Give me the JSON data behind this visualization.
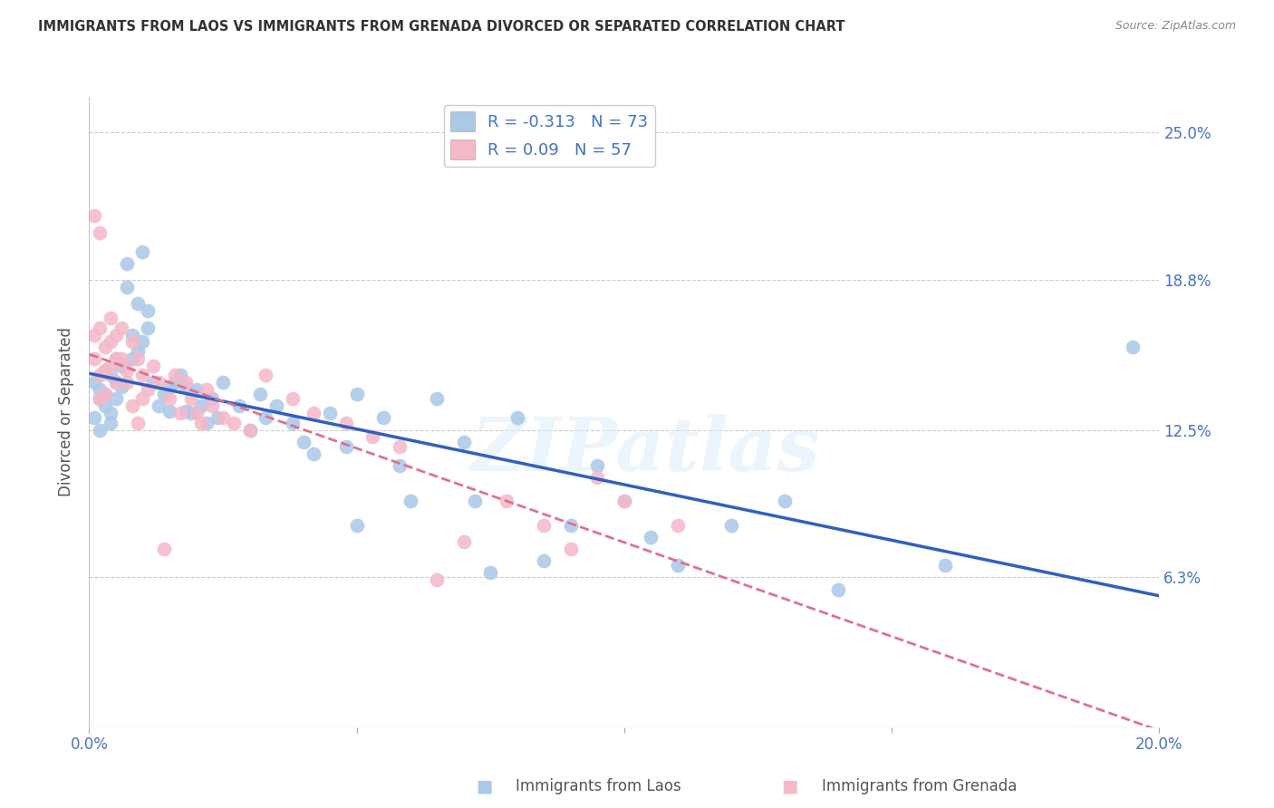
{
  "title": "IMMIGRANTS FROM LAOS VS IMMIGRANTS FROM GRENADA DIVORCED OR SEPARATED CORRELATION CHART",
  "source": "Source: ZipAtlas.com",
  "ylabel": "Divorced or Separated",
  "xmin": 0.0,
  "xmax": 0.2,
  "ymin": 0.0,
  "ymax": 0.265,
  "ytick_positions": [
    0.0,
    0.063,
    0.125,
    0.188,
    0.25
  ],
  "ytick_labels": [
    "",
    "6.3%",
    "12.5%",
    "18.8%",
    "25.0%"
  ],
  "xtick_positions": [
    0.0,
    0.05,
    0.1,
    0.15,
    0.2
  ],
  "xtick_labels": [
    "0.0%",
    "",
    "",
    "",
    "20.0%"
  ],
  "laos_R": -0.313,
  "laos_N": 73,
  "grenada_R": 0.09,
  "grenada_N": 57,
  "laos_color": "#aac8e8",
  "grenada_color": "#f5b8c8",
  "laos_line_color": "#3060c0",
  "grenada_line_color": "#e07090",
  "watermark": "ZIPatlas",
  "laos_x": [
    0.001,
    0.001,
    0.002,
    0.002,
    0.002,
    0.003,
    0.003,
    0.003,
    0.004,
    0.004,
    0.004,
    0.005,
    0.005,
    0.005,
    0.006,
    0.006,
    0.007,
    0.007,
    0.008,
    0.008,
    0.009,
    0.009,
    0.01,
    0.01,
    0.011,
    0.011,
    0.012,
    0.013,
    0.014,
    0.015,
    0.015,
    0.016,
    0.017,
    0.018,
    0.018,
    0.019,
    0.02,
    0.021,
    0.022,
    0.023,
    0.024,
    0.025,
    0.028,
    0.03,
    0.032,
    0.033,
    0.035,
    0.038,
    0.04,
    0.042,
    0.045,
    0.048,
    0.05,
    0.05,
    0.055,
    0.058,
    0.06,
    0.065,
    0.07,
    0.072,
    0.075,
    0.08,
    0.085,
    0.09,
    0.095,
    0.1,
    0.105,
    0.11,
    0.12,
    0.13,
    0.14,
    0.16,
    0.195
  ],
  "laos_y": [
    0.145,
    0.13,
    0.142,
    0.138,
    0.125,
    0.15,
    0.14,
    0.135,
    0.148,
    0.132,
    0.128,
    0.155,
    0.145,
    0.138,
    0.152,
    0.143,
    0.195,
    0.185,
    0.165,
    0.155,
    0.178,
    0.158,
    0.2,
    0.162,
    0.175,
    0.168,
    0.145,
    0.135,
    0.14,
    0.143,
    0.133,
    0.145,
    0.148,
    0.133,
    0.143,
    0.132,
    0.142,
    0.135,
    0.128,
    0.138,
    0.13,
    0.145,
    0.135,
    0.125,
    0.14,
    0.13,
    0.135,
    0.128,
    0.12,
    0.115,
    0.132,
    0.118,
    0.14,
    0.085,
    0.13,
    0.11,
    0.095,
    0.138,
    0.12,
    0.095,
    0.065,
    0.13,
    0.07,
    0.085,
    0.11,
    0.095,
    0.08,
    0.068,
    0.085,
    0.095,
    0.058,
    0.068,
    0.16
  ],
  "grenada_x": [
    0.001,
    0.001,
    0.001,
    0.002,
    0.002,
    0.002,
    0.002,
    0.003,
    0.003,
    0.003,
    0.003,
    0.004,
    0.004,
    0.004,
    0.005,
    0.005,
    0.005,
    0.006,
    0.006,
    0.007,
    0.007,
    0.008,
    0.008,
    0.009,
    0.009,
    0.01,
    0.01,
    0.011,
    0.012,
    0.013,
    0.014,
    0.015,
    0.016,
    0.017,
    0.018,
    0.019,
    0.02,
    0.021,
    0.022,
    0.023,
    0.025,
    0.027,
    0.03,
    0.033,
    0.038,
    0.042,
    0.048,
    0.053,
    0.058,
    0.065,
    0.07,
    0.078,
    0.085,
    0.09,
    0.095,
    0.1,
    0.11
  ],
  "grenada_y": [
    0.165,
    0.155,
    0.215,
    0.168,
    0.208,
    0.148,
    0.138,
    0.16,
    0.15,
    0.14,
    0.15,
    0.172,
    0.162,
    0.152,
    0.155,
    0.165,
    0.145,
    0.168,
    0.155,
    0.15,
    0.145,
    0.162,
    0.135,
    0.155,
    0.128,
    0.148,
    0.138,
    0.142,
    0.152,
    0.145,
    0.075,
    0.138,
    0.148,
    0.132,
    0.145,
    0.138,
    0.132,
    0.128,
    0.142,
    0.135,
    0.13,
    0.128,
    0.125,
    0.148,
    0.138,
    0.132,
    0.128,
    0.122,
    0.118,
    0.062,
    0.078,
    0.095,
    0.085,
    0.075,
    0.105,
    0.095,
    0.085
  ]
}
